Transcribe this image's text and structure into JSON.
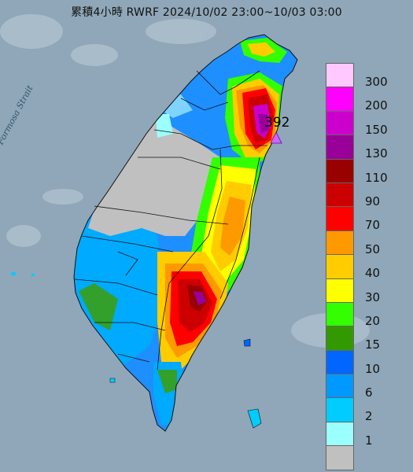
{
  "title": "累積4小時 RWRF 2024/10/02 23:00~10/03 03:00",
  "strait_label": "Formosa Strait",
  "max_value_label": "392",
  "legend": {
    "items": [
      {
        "label": "300",
        "color": "#ffc9ff"
      },
      {
        "label": "200",
        "color": "#ff00ff"
      },
      {
        "label": "150",
        "color": "#cc00cc"
      },
      {
        "label": "130",
        "color": "#990099"
      },
      {
        "label": "110",
        "color": "#990000"
      },
      {
        "label": "90",
        "color": "#cc0000"
      },
      {
        "label": "70",
        "color": "#ff0000"
      },
      {
        "label": "50",
        "color": "#ff9900"
      },
      {
        "label": "40",
        "color": "#ffcc00"
      },
      {
        "label": "30",
        "color": "#ffff00"
      },
      {
        "label": "20",
        "color": "#33ff00"
      },
      {
        "label": "15",
        "color": "#339900"
      },
      {
        "label": "10",
        "color": "#0066ff"
      },
      {
        "label": "6",
        "color": "#0099ff"
      },
      {
        "label": "2",
        "color": "#00ccff"
      },
      {
        "label": "1",
        "color": "#9cffff"
      },
      {
        "label": "",
        "color": "#c0c0c0"
      }
    ]
  },
  "colors": {
    "sea": "#8fa7b8",
    "no_rain": "#c0c0c0",
    "boundary": "#111111",
    "max_marker": "#cc66ff"
  }
}
